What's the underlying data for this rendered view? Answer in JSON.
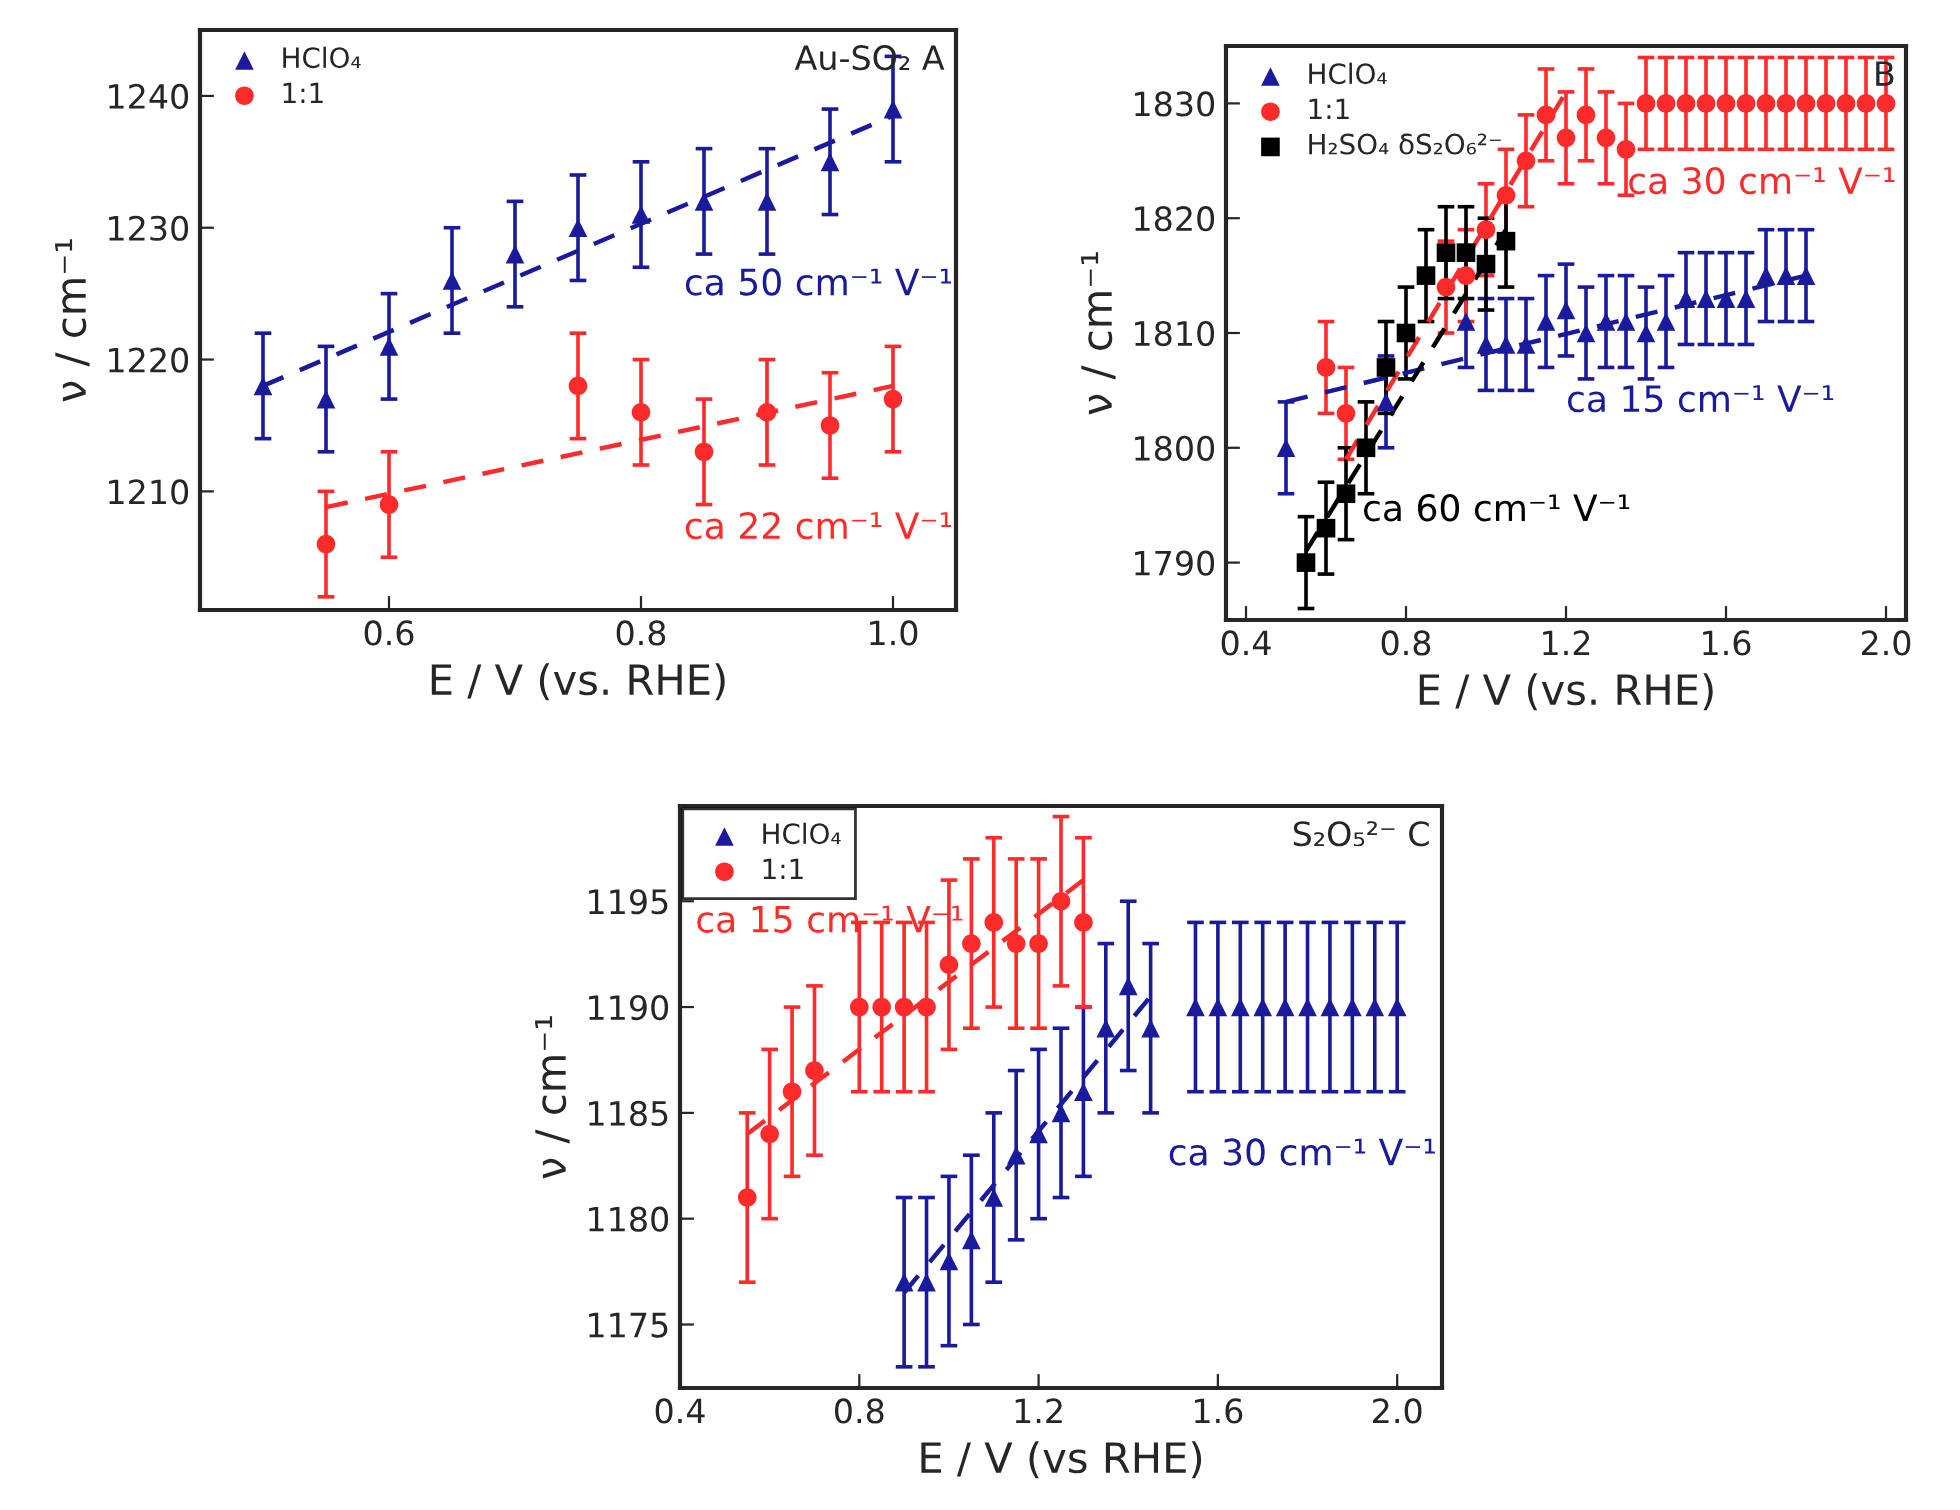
{
  "chart_data": [
    {
      "type": "scatter",
      "xlabel": "E / V (vs. RHE)",
      "ylabel": "ν / cm⁻¹",
      "xlim": [
        0.45,
        1.05
      ],
      "ylim": [
        1201,
        1245
      ],
      "xticks": [
        {
          "value": 0.6,
          "label": "0.6"
        },
        {
          "value": 0.8,
          "label": "0.8"
        },
        {
          "value": 1.0,
          "label": "1.0"
        }
      ],
      "yticks": [
        1210,
        1220,
        1230,
        1240
      ],
      "grid": false,
      "legend": "top left",
      "annotations": [
        "Au-SO₂ A",
        "ca 50 cm⁻¹ V⁻¹",
        "ca 22 cm⁻¹ V⁻¹"
      ],
      "series": [
        {
          "name": "HClO₄",
          "marker": "triangle",
          "color": "#1a1a9c",
          "x": [
            0.5,
            0.55,
            0.6,
            0.65,
            0.7,
            0.75,
            0.8,
            0.85,
            0.9,
            0.95,
            1.0
          ],
          "values": [
            1218,
            1217,
            1221,
            1226,
            1228,
            1230,
            1231,
            1232,
            1232,
            1235,
            1239
          ],
          "errors": [
            4,
            4,
            4,
            4,
            4,
            4,
            4,
            4,
            4,
            4,
            4
          ]
        },
        {
          "name": "1:1",
          "marker": "circle",
          "color": "#ff2a2a",
          "x": [
            0.55,
            0.6,
            0.75,
            0.8,
            0.85,
            0.9,
            0.95,
            1.0
          ],
          "values": [
            1206,
            1209,
            1218,
            1216,
            1213,
            1216,
            1215,
            1217
          ],
          "errors": [
            4,
            4,
            4,
            4,
            4,
            4,
            4,
            4
          ]
        },
        {
          "type": "line",
          "line_style": "dashed",
          "color": "#1a1a9c",
          "x": [
            0.5,
            1.0
          ],
          "values": [
            1218,
            1238.5
          ]
        },
        {
          "type": "line",
          "line_style": "dashed",
          "color": "#ff2a2a",
          "x": [
            0.55,
            1.0
          ],
          "values": [
            1208.8,
            1218
          ]
        }
      ]
    },
    {
      "type": "scatter",
      "xlabel": "E / V (vs. RHE)",
      "ylabel": "ν / cm⁻¹",
      "xlim": [
        0.35,
        2.05
      ],
      "ylim": [
        1785,
        1835
      ],
      "xticks": [
        0.4,
        0.8,
        1.2,
        1.6,
        {
          "value": 2.0,
          "label": "2.0"
        }
      ],
      "yticks": [
        1790,
        1800,
        1810,
        1820,
        1830
      ],
      "grid": false,
      "legend": "top left",
      "annotations": [
        "B",
        "ca 15 cm⁻¹ V⁻¹",
        "ca 30 cm⁻¹ V⁻¹",
        "ca 60 cm⁻¹ V⁻¹"
      ],
      "series": [
        {
          "name": "HClO₄",
          "marker": "triangle",
          "color": "#1a1a9c",
          "x": [
            0.5,
            0.75,
            0.95,
            1.0,
            1.05,
            1.1,
            1.15,
            1.2,
            1.25,
            1.3,
            1.35,
            1.4,
            1.45,
            1.5,
            1.55,
            1.6,
            1.65,
            1.7,
            1.75,
            1.8
          ],
          "values": [
            1800,
            1804,
            1811,
            1809,
            1809,
            1809,
            1811,
            1812,
            1810,
            1811,
            1811,
            1810,
            1811,
            1813,
            1813,
            1813,
            1813,
            1815,
            1815,
            1815
          ],
          "errors": [
            4,
            4,
            4,
            4,
            4,
            4,
            4,
            4,
            4,
            4,
            4,
            4,
            4,
            4,
            4,
            4,
            4,
            4,
            4,
            4
          ]
        },
        {
          "name": "1:1",
          "marker": "circle",
          "color": "#ff2a2a",
          "x": [
            0.6,
            0.65,
            0.9,
            0.95,
            1.0,
            1.05,
            1.1,
            1.15,
            1.2,
            1.25,
            1.3,
            1.35,
            1.4,
            1.45,
            1.5,
            1.55,
            1.6,
            1.65,
            1.7,
            1.75,
            1.8,
            1.85,
            1.9,
            1.95,
            2.0
          ],
          "values": [
            1807,
            1803,
            1814,
            1815,
            1819,
            1822,
            1825,
            1829,
            1827,
            1829,
            1827,
            1826,
            1830,
            1830,
            1830,
            1830,
            1830,
            1830,
            1830,
            1830,
            1830,
            1830,
            1830,
            1830,
            1830
          ],
          "errors": [
            4,
            4,
            4,
            4,
            4,
            4,
            4,
            4,
            4,
            4,
            4,
            4,
            4,
            4,
            4,
            4,
            4,
            4,
            4,
            4,
            4,
            4,
            4,
            4,
            4
          ]
        },
        {
          "name": "H₂SO₄ δS₂O₆²⁻",
          "marker": "square",
          "color": "#000000",
          "x": [
            0.55,
            0.6,
            0.65,
            0.7,
            0.75,
            0.8,
            0.85,
            0.9,
            0.95,
            1.0,
            1.05
          ],
          "values": [
            1790,
            1793,
            1796,
            1800,
            1807,
            1810,
            1815,
            1817,
            1817,
            1816,
            1818
          ],
          "errors": [
            4,
            4,
            4,
            4,
            4,
            4,
            4,
            4,
            4,
            4,
            4
          ]
        },
        {
          "type": "line",
          "line_style": "dashed",
          "color": "#1a1a9c",
          "x": [
            0.5,
            1.8
          ],
          "values": [
            1804,
            1815
          ]
        },
        {
          "type": "line",
          "line_style": "dashed",
          "color": "#ff2a2a",
          "x": [
            0.65,
            1.2
          ],
          "values": [
            1799,
            1831
          ]
        },
        {
          "type": "line",
          "line_style": "dashed",
          "color": "#000000",
          "x": [
            0.55,
            1.05
          ],
          "values": [
            1791,
            1819
          ]
        }
      ]
    },
    {
      "type": "scatter",
      "xlabel": "E / V (vs RHE)",
      "ylabel": "ν / cm⁻¹",
      "xlim": [
        0.4,
        2.1
      ],
      "ylim": [
        1172,
        1199.5
      ],
      "xticks": [
        0.4,
        0.8,
        1.2,
        1.6,
        {
          "value": 2.0,
          "label": "2.0"
        }
      ],
      "yticks": [
        1175,
        1180,
        1185,
        1190,
        1195
      ],
      "grid": false,
      "legend": "top left",
      "annotations": [
        "S₂O₅²⁻ C",
        "ca 30 cm⁻¹ V⁻¹",
        "ca 15 cm⁻¹ V⁻¹"
      ],
      "series": [
        {
          "name": "HClO₄",
          "marker": "triangle",
          "color": "#1a1a9c",
          "x": [
            0.9,
            0.95,
            1.0,
            1.05,
            1.1,
            1.15,
            1.2,
            1.25,
            1.3,
            1.35,
            1.4,
            1.45,
            1.55,
            1.6,
            1.65,
            1.7,
            1.75,
            1.8,
            1.85,
            1.9,
            1.95,
            2.0
          ],
          "values": [
            1177,
            1177,
            1178,
            1179,
            1181,
            1183,
            1184,
            1185,
            1186,
            1189,
            1191,
            1189,
            1190,
            1190,
            1190,
            1190,
            1190,
            1190,
            1190,
            1190,
            1190,
            1190
          ],
          "errors": [
            4,
            4,
            4,
            4,
            4,
            4,
            4,
            4,
            4,
            4,
            4,
            4,
            4,
            4,
            4,
            4,
            4,
            4,
            4,
            4,
            4,
            4
          ]
        },
        {
          "name": "1:1",
          "marker": "circle",
          "color": "#ff2a2a",
          "x": [
            0.55,
            0.6,
            0.65,
            0.7,
            0.8,
            0.85,
            0.9,
            0.95,
            1.0,
            1.05,
            1.1,
            1.15,
            1.2,
            1.25,
            1.3
          ],
          "values": [
            1181,
            1184,
            1186,
            1187,
            1190,
            1190,
            1190,
            1190,
            1192,
            1193,
            1194,
            1193,
            1193,
            1195,
            1194
          ],
          "errors": [
            4,
            4,
            4,
            4,
            4,
            4,
            4,
            4,
            4,
            4,
            4,
            4,
            4,
            4,
            4
          ]
        },
        {
          "type": "line",
          "line_style": "dashed",
          "color": "#1a1a9c",
          "x": [
            0.9,
            1.45
          ],
          "values": [
            1176.5,
            1190.5
          ]
        },
        {
          "type": "line",
          "line_style": "dashed",
          "color": "#ff2a2a",
          "x": [
            0.55,
            1.3
          ],
          "values": [
            1184,
            1196
          ]
        }
      ]
    }
  ]
}
